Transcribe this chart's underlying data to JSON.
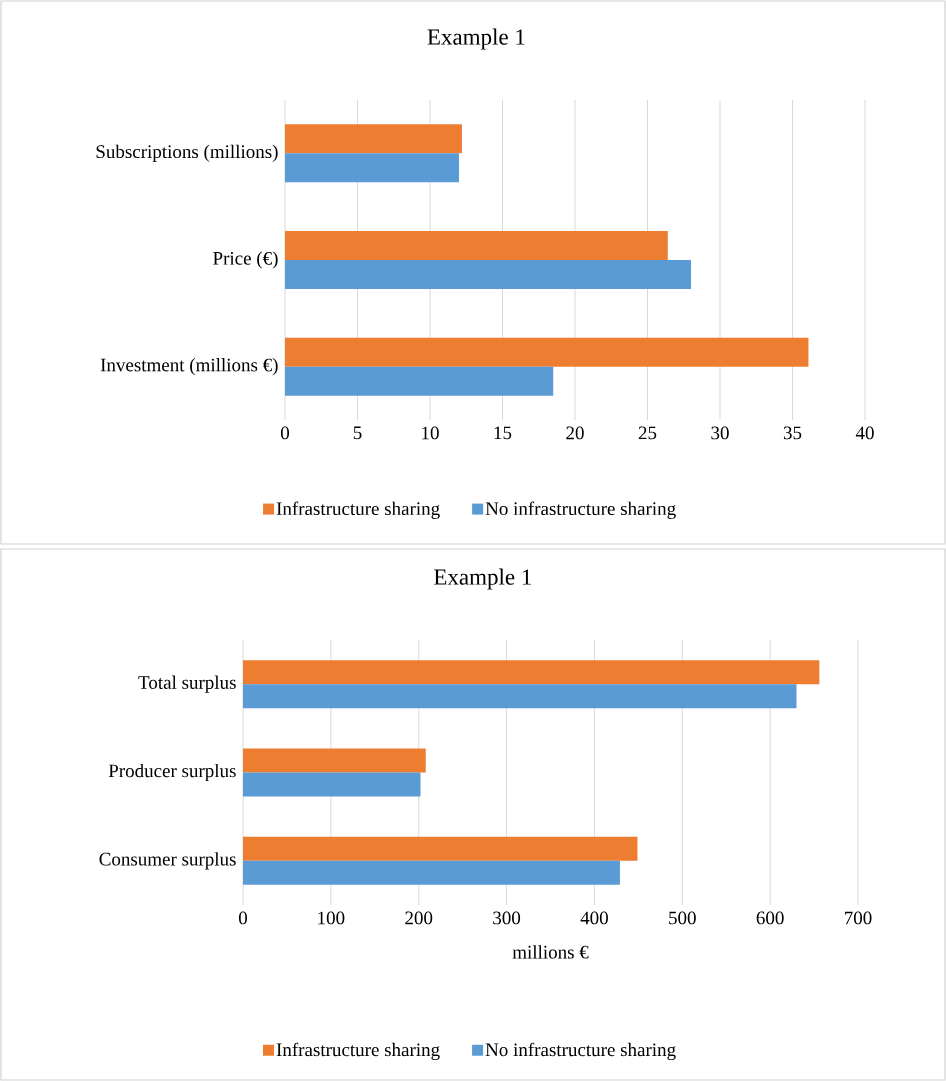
{
  "chart_data": [
    {
      "type": "bar",
      "orientation": "horizontal",
      "title": "Example 1",
      "categories": [
        "Subscriptions (millions)",
        "Price (€)",
        "Investment (millions €)"
      ],
      "series": [
        {
          "name": "Infrastructure sharing",
          "color": "#ed7d31",
          "values": [
            12.2,
            26.4,
            36.1
          ]
        },
        {
          "name": "No infrastructure sharing",
          "color": "#5b9bd5",
          "values": [
            12.0,
            28.0,
            18.5
          ]
        }
      ],
      "xlim": [
        0,
        40
      ],
      "xticks": [
        0,
        5,
        10,
        15,
        20,
        25,
        30,
        35,
        40
      ],
      "grid": "x",
      "legend": "bottom"
    },
    {
      "type": "bar",
      "orientation": "horizontal",
      "title": "Example 1",
      "xlabel": "millions €",
      "categories": [
        "Total surplus",
        "Producer surplus",
        "Consumer surplus"
      ],
      "series": [
        {
          "name": "Infrastructure sharing",
          "color": "#ed7d31",
          "values": [
            656,
            208,
            449
          ]
        },
        {
          "name": "No infrastructure sharing",
          "color": "#5b9bd5",
          "values": [
            630,
            202,
            429
          ]
        }
      ],
      "xlim": [
        0,
        700
      ],
      "xticks": [
        0,
        100,
        200,
        300,
        400,
        500,
        600,
        700
      ],
      "grid": "x",
      "legend": "bottom"
    }
  ]
}
